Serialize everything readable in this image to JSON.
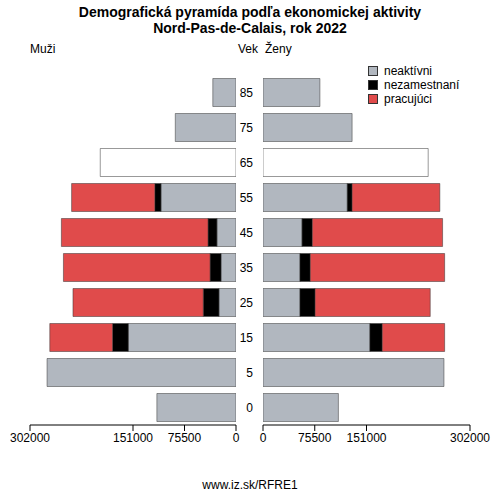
{
  "title": "Demografická pyramída podľa ekonomickej aktivity",
  "subtitle": "Nord-Pas-de-Calais, rok 2022",
  "ylabel": "Vek",
  "source": "www.iz.sk/RFRE1",
  "chart_data": [
    {
      "type": "bar",
      "title": "Muži",
      "orientation": "horizontal",
      "stacked": true,
      "categories": [
        "0",
        "5",
        "15",
        "25",
        "35",
        "45",
        "55",
        "65",
        "75",
        "85"
      ],
      "xlim": [
        0,
        302000
      ],
      "xticks": [
        0,
        75500,
        151000,
        302000
      ],
      "series": [
        {
          "name": "neaktívni",
          "color": "#b1b7bf",
          "colors": [
            "#b1b7bf",
            "#b1b7bf",
            "#b1b7bf",
            "#b1b7bf",
            "#b1b7bf",
            "#b1b7bf",
            "#b1b7bf",
            "#ffffff",
            "#b1b7bf",
            "#b1b7bf"
          ],
          "values": [
            116000,
            277000,
            158000,
            25000,
            22000,
            28000,
            110000,
            199000,
            89000,
            34000
          ]
        },
        {
          "name": "nezamestnaní",
          "color": "#000000",
          "values": [
            null,
            null,
            23000,
            23000,
            16000,
            13000,
            9000,
            null,
            null,
            null
          ]
        },
        {
          "name": "pracujúci",
          "color": "#e04b4b",
          "values": [
            null,
            null,
            92000,
            191000,
            215000,
            215000,
            122000,
            null,
            null,
            null
          ]
        }
      ]
    },
    {
      "type": "bar",
      "title": "Ženy",
      "orientation": "horizontal",
      "stacked": true,
      "legend": "top right",
      "categories": [
        "0",
        "5",
        "15",
        "25",
        "35",
        "45",
        "55",
        "65",
        "75",
        "85"
      ],
      "xlim": [
        0,
        302000
      ],
      "xticks": [
        0,
        75500,
        151000,
        302000
      ],
      "series": [
        {
          "name": "neaktívni",
          "color": "#b1b7bf",
          "colors": [
            "#b1b7bf",
            "#b1b7bf",
            "#b1b7bf",
            "#b1b7bf",
            "#b1b7bf",
            "#b1b7bf",
            "#b1b7bf",
            "#ffffff",
            "#b1b7bf",
            "#b1b7bf"
          ],
          "values": [
            110000,
            264000,
            156000,
            54000,
            54000,
            57000,
            123000,
            241000,
            130000,
            83000
          ]
        },
        {
          "name": "nezamestnaní",
          "color": "#000000",
          "values": [
            null,
            null,
            18000,
            22000,
            15000,
            15000,
            7000,
            null,
            null,
            null
          ]
        },
        {
          "name": "pracujúci",
          "color": "#e04b4b",
          "values": [
            null,
            null,
            91000,
            168000,
            196000,
            190000,
            128000,
            null,
            null,
            null
          ]
        }
      ]
    }
  ]
}
